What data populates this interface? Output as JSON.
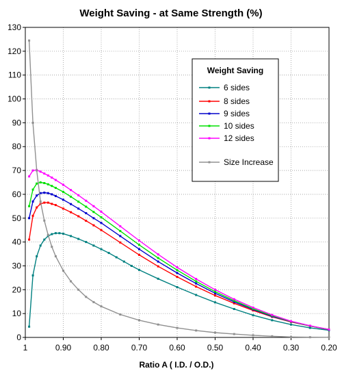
{
  "chart_data": {
    "type": "line",
    "title": "Weight Saving - at Same Strength (%)",
    "xlabel": "Ratio A ( I.D. / O.D.)",
    "ylabel": "",
    "xlim": [
      1.0,
      0.2
    ],
    "ylim": [
      0,
      130
    ],
    "x_reversed": true,
    "grid": "dotted",
    "x_ticks": [
      {
        "value": 1.0,
        "label": "1"
      },
      {
        "value": 0.9,
        "label": "0.90"
      },
      {
        "value": 0.8,
        "label": "0.80"
      },
      {
        "value": 0.7,
        "label": "0.70"
      },
      {
        "value": 0.6,
        "label": "0.60"
      },
      {
        "value": 0.5,
        "label": "0.50"
      },
      {
        "value": 0.4,
        "label": "0.40"
      },
      {
        "value": 0.3,
        "label": "0.30"
      },
      {
        "value": 0.2,
        "label": "0.20"
      }
    ],
    "y_ticks": [
      0,
      10,
      20,
      30,
      40,
      50,
      60,
      70,
      80,
      90,
      100,
      110,
      120,
      130
    ],
    "legend": {
      "title": "Weight Saving",
      "placement": "top-right"
    },
    "series": [
      {
        "name": "6 sides",
        "color": "#008080",
        "x": [
          0.99,
          0.98,
          0.97,
          0.96,
          0.95,
          0.94,
          0.93,
          0.92,
          0.91,
          0.9,
          0.88,
          0.86,
          0.84,
          0.82,
          0.8,
          0.78,
          0.76,
          0.74,
          0.72,
          0.7,
          0.65,
          0.6,
          0.55,
          0.5,
          0.45,
          0.4,
          0.35,
          0.3,
          0.25,
          0.2
        ],
        "y": [
          4.5,
          26,
          34,
          38.5,
          41,
          42.5,
          43.3,
          43.7,
          43.7,
          43.5,
          42.5,
          41.3,
          40,
          38.5,
          37,
          35.4,
          33.6,
          31.8,
          30,
          28.3,
          24.6,
          21.1,
          17.8,
          14.7,
          11.9,
          9.3,
          7.2,
          5.4,
          4.0,
          3.0
        ]
      },
      {
        "name": "8 sides",
        "color": "#ff0000",
        "x": [
          0.99,
          0.98,
          0.97,
          0.96,
          0.95,
          0.94,
          0.93,
          0.92,
          0.9,
          0.88,
          0.86,
          0.84,
          0.82,
          0.8,
          0.75,
          0.7,
          0.65,
          0.6,
          0.55,
          0.5,
          0.45,
          0.4,
          0.35,
          0.3,
          0.25,
          0.2
        ],
        "y": [
          41,
          51,
          54.5,
          56,
          56.5,
          56.5,
          56,
          55.5,
          54,
          52.5,
          50.8,
          48.9,
          47,
          45,
          39.8,
          34.6,
          29.8,
          25.4,
          21.3,
          17.6,
          14.3,
          11.3,
          8.6,
          6.5,
          4.8,
          3.3
        ]
      },
      {
        "name": "9 sides",
        "color": "#0000cc",
        "x": [
          0.99,
          0.98,
          0.97,
          0.96,
          0.95,
          0.94,
          0.93,
          0.92,
          0.9,
          0.88,
          0.86,
          0.84,
          0.82,
          0.8,
          0.75,
          0.7,
          0.65,
          0.6,
          0.55,
          0.5,
          0.45,
          0.4,
          0.35,
          0.3,
          0.25,
          0.2
        ],
        "y": [
          50,
          57,
          59.5,
          60.5,
          60.7,
          60.5,
          60,
          59.3,
          57.7,
          55.9,
          54,
          52.1,
          50,
          48,
          42.5,
          37,
          31.8,
          27,
          22.6,
          18.5,
          14.9,
          11.7,
          8.8,
          6.6,
          4.8,
          3.3
        ]
      },
      {
        "name": "10 sides",
        "color": "#00e000",
        "x": [
          0.99,
          0.98,
          0.97,
          0.96,
          0.95,
          0.94,
          0.93,
          0.92,
          0.9,
          0.88,
          0.86,
          0.84,
          0.82,
          0.8,
          0.75,
          0.7,
          0.65,
          0.6,
          0.55,
          0.5,
          0.45,
          0.4,
          0.35,
          0.3,
          0.25,
          0.2
        ],
        "y": [
          55,
          62,
          64.5,
          65,
          64.7,
          64.2,
          63.5,
          62.7,
          61,
          59,
          56.9,
          54.8,
          52.6,
          50.4,
          44.6,
          38.8,
          33.3,
          28.2,
          23.5,
          19.2,
          15.4,
          12,
          9.1,
          6.7,
          4.8,
          3.3
        ]
      },
      {
        "name": "12 sides",
        "color": "#ff00ff",
        "x": [
          0.99,
          0.98,
          0.97,
          0.96,
          0.95,
          0.94,
          0.93,
          0.92,
          0.9,
          0.88,
          0.86,
          0.84,
          0.82,
          0.8,
          0.75,
          0.7,
          0.65,
          0.6,
          0.55,
          0.5,
          0.45,
          0.4,
          0.35,
          0.3,
          0.25,
          0.2
        ],
        "y": [
          67.5,
          70,
          70.2,
          69.5,
          68.7,
          67.9,
          67,
          66,
          64,
          61.8,
          59.6,
          57.3,
          55,
          52.7,
          46.6,
          40.6,
          34.8,
          29.4,
          24.5,
          20,
          16,
          12.5,
          9.4,
          6.8,
          4.9,
          3.3
        ]
      },
      {
        "name": "Size Increase",
        "color": "#909090",
        "x": [
          0.99,
          0.98,
          0.97,
          0.96,
          0.95,
          0.94,
          0.93,
          0.92,
          0.9,
          0.88,
          0.86,
          0.84,
          0.82,
          0.8,
          0.75,
          0.7,
          0.65,
          0.6,
          0.55,
          0.5,
          0.45,
          0.4,
          0.35,
          0.3,
          0.25,
          0.2
        ],
        "y": [
          124.5,
          90,
          70,
          57,
          49,
          43,
          38,
          34,
          28,
          23.5,
          20,
          17,
          14.8,
          13,
          9.6,
          7.2,
          5.4,
          4.0,
          2.9,
          2.0,
          1.4,
          0.9,
          0.5,
          0.2,
          0.1,
          0.05
        ]
      }
    ]
  }
}
